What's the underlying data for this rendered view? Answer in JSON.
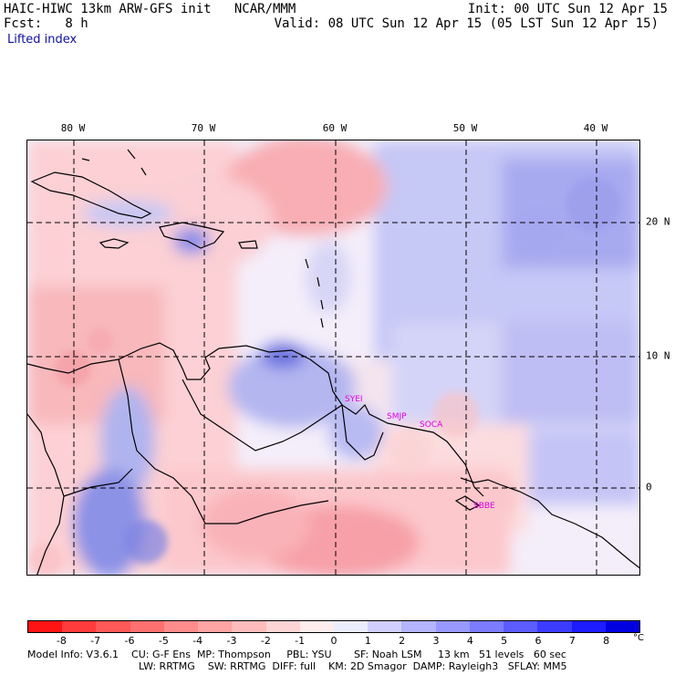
{
  "header": {
    "model_line": "HAIC-HIWC 13km ARW-GFS init   NCAR/MMM",
    "fcst_line": "Fcst:   8 h",
    "field": "Lifted index",
    "init": "Init: 00 UTC Sun 12 Apr 15",
    "valid": "Valid: 08 UTC Sun 12 Apr 15 (05 LST Sun 12 Apr 15)"
  },
  "map": {
    "lon_labels": [
      "80 W",
      "70 W",
      "60 W",
      "50 W",
      "40 W"
    ],
    "lat_labels": [
      "20 N",
      "10 N",
      "0"
    ],
    "stations": [
      "SYEI",
      "SMJP",
      "SOCA",
      "SBBE"
    ]
  },
  "colorbar": {
    "ticks": [
      "-8",
      "-7",
      "-6",
      "-5",
      "-4",
      "-3",
      "-2",
      "-1",
      "0",
      "1",
      "2",
      "3",
      "4",
      "5",
      "6",
      "7",
      "8"
    ],
    "unit": "°C",
    "colors": [
      "#ff1414",
      "#ff3c3c",
      "#ff5858",
      "#ff7070",
      "#ff8c8c",
      "#ffa4a4",
      "#ffbcbc",
      "#ffd4d4",
      "#ffecec",
      "#ececff",
      "#d0d0ff",
      "#b4b4ff",
      "#9898ff",
      "#7c7cff",
      "#5c5cff",
      "#3c3cff",
      "#1c1cff",
      "#0000e0"
    ]
  },
  "footer": {
    "line1": "Model Info: V3.6.1    CU: G-F Ens  MP: Thompson     PBL: YSU       SF: Noah LSM     13 km   51 levels   60 sec",
    "line2": "LW: RRTMG    SW: RRTMG  DIFF: full    KM: 2D Smagor  DAMP: Rayleigh3   SFLAY: MM5"
  }
}
